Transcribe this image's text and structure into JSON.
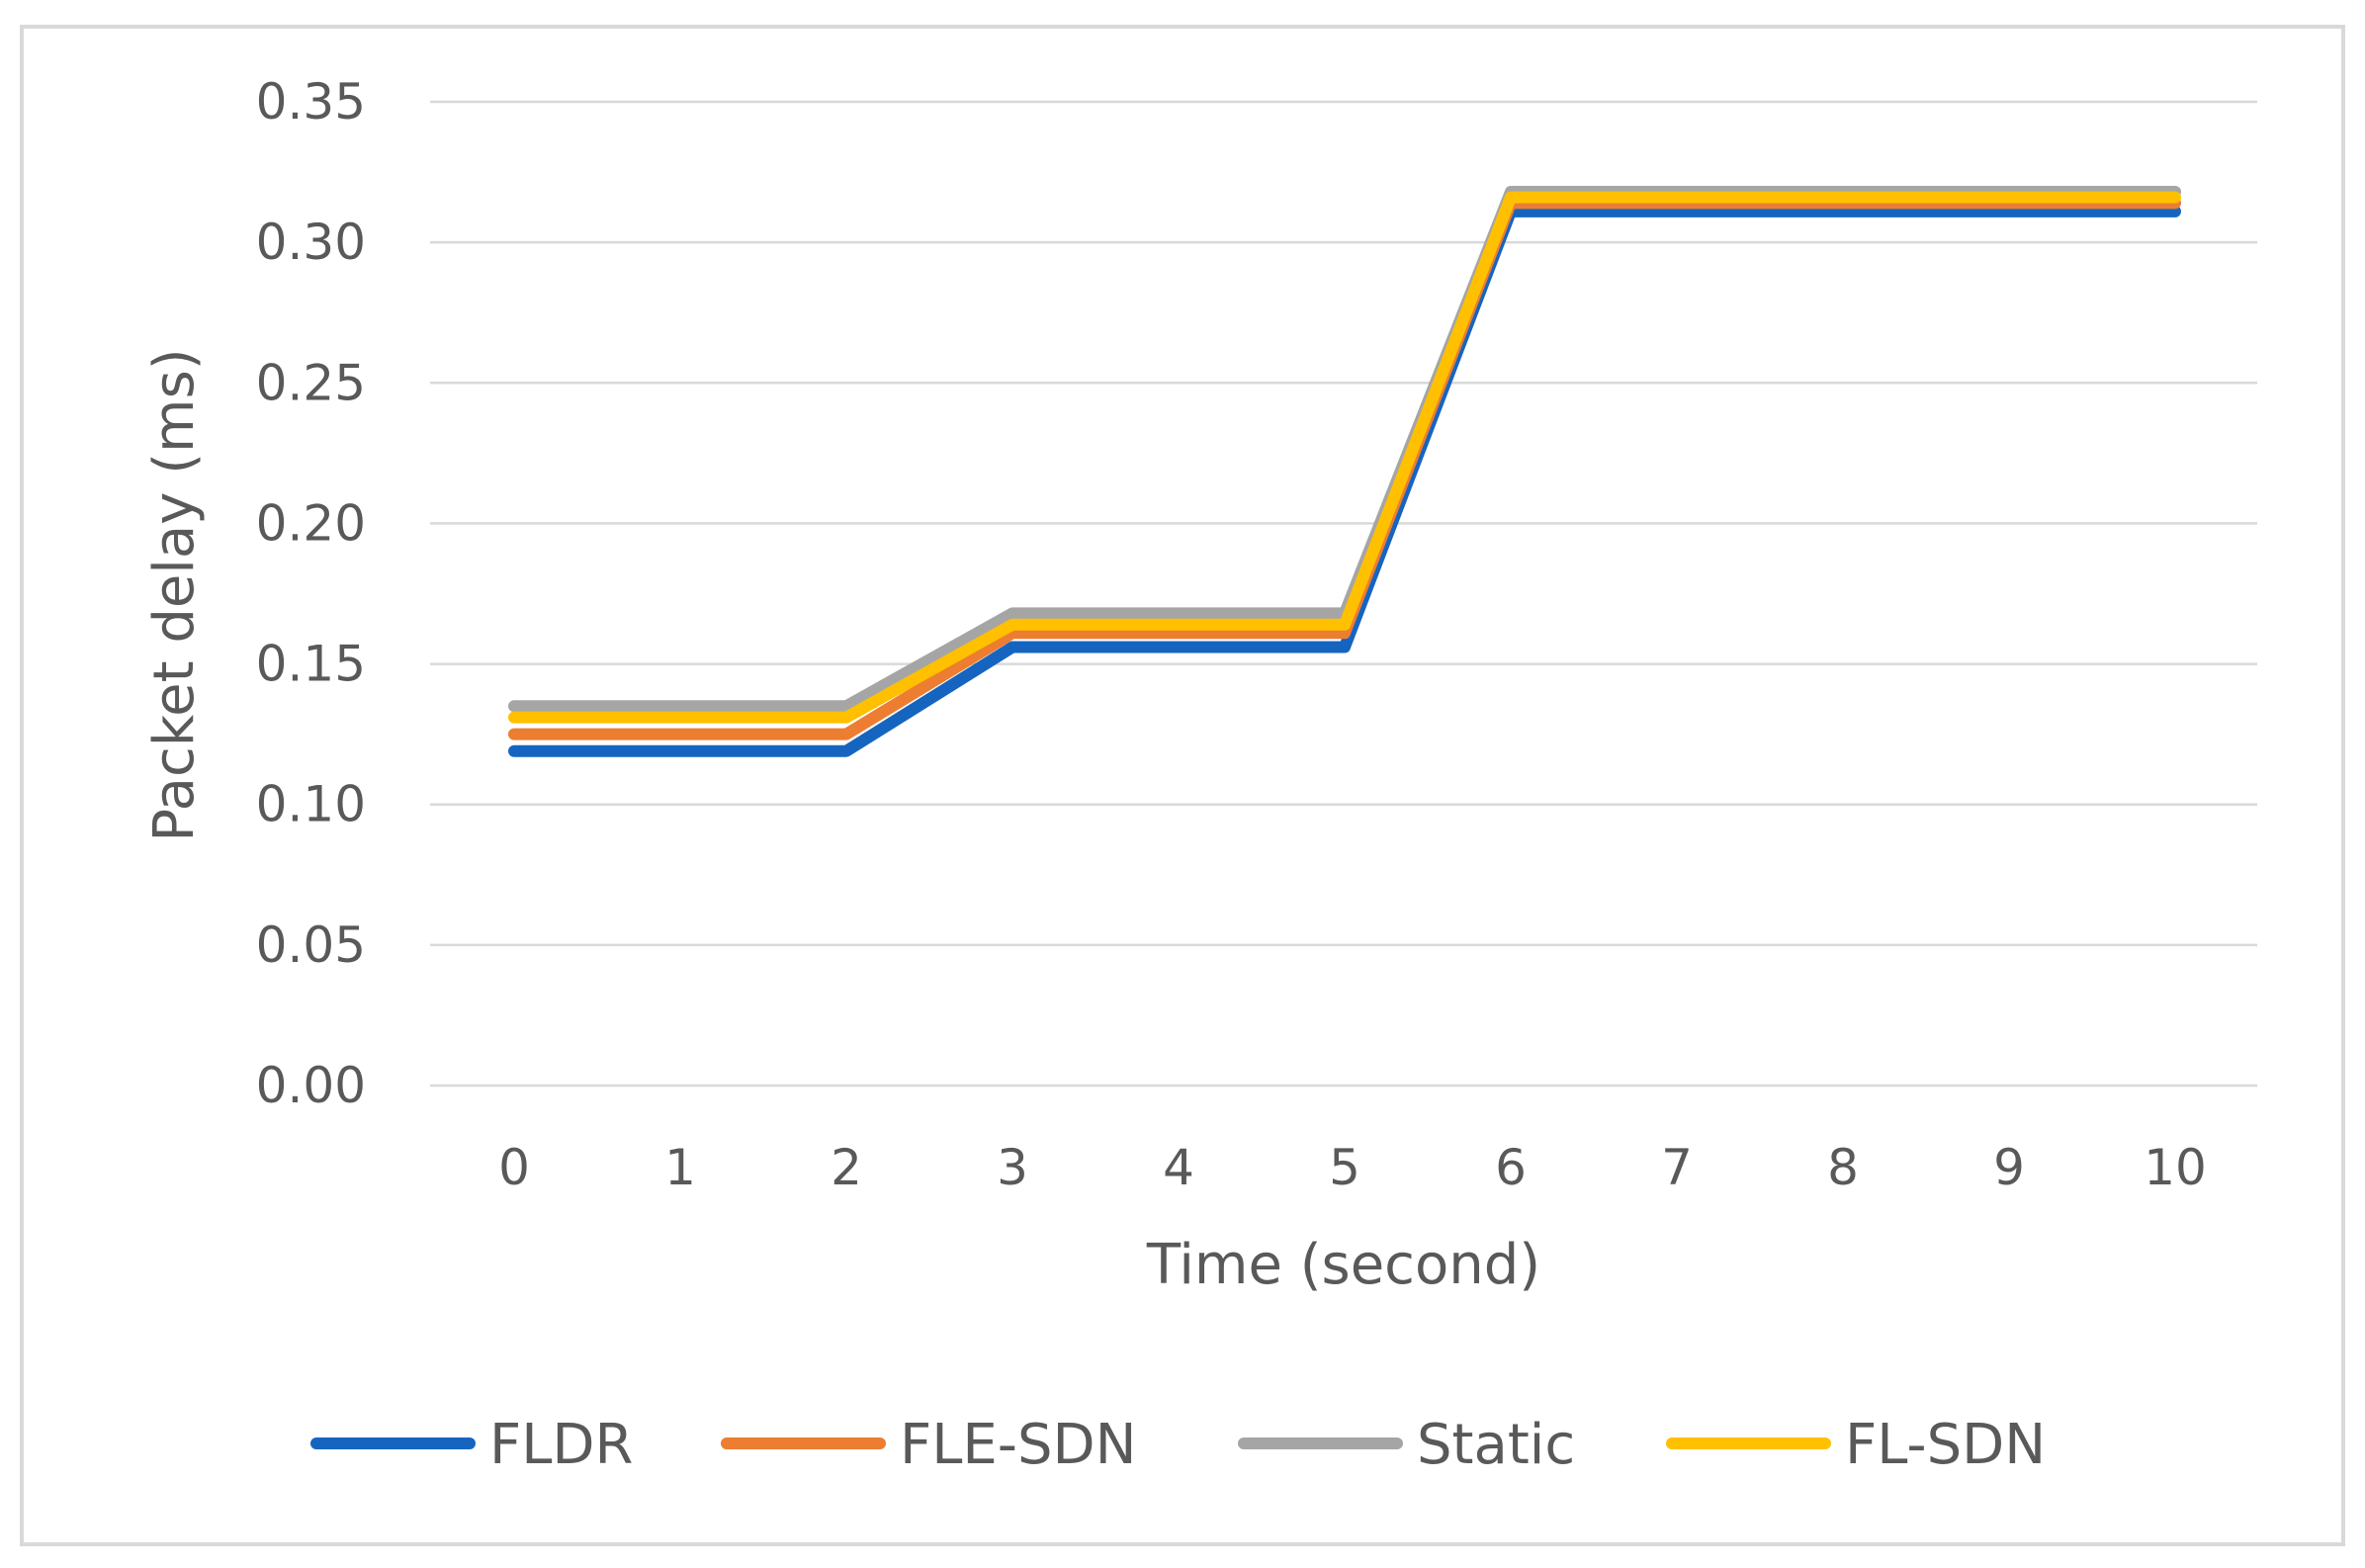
{
  "chart_data": {
    "type": "line",
    "title": "",
    "xlabel": "Time (second)",
    "ylabel": "Packet delay (ms)",
    "categories": [
      "0",
      "1",
      "2",
      "3",
      "4",
      "5",
      "6",
      "7",
      "8",
      "9",
      "10"
    ],
    "x": [
      0,
      1,
      2,
      3,
      4,
      5,
      6,
      7,
      8,
      9,
      10
    ],
    "ylim": [
      0,
      0.35
    ],
    "yticks": [
      "0.00",
      "0.05",
      "0.10",
      "0.15",
      "0.20",
      "0.25",
      "0.30",
      "0.35"
    ],
    "ytick_values": [
      0,
      0.05,
      0.1,
      0.15,
      0.2,
      0.25,
      0.3,
      0.35
    ],
    "grid": true,
    "legend_position": "bottom",
    "series": [
      {
        "name": "FLDR",
        "color": "#1565C0",
        "values": [
          0.119,
          0.119,
          0.119,
          0.156,
          0.156,
          0.156,
          0.311,
          0.311,
          0.311,
          0.311,
          0.311
        ]
      },
      {
        "name": "FLE-SDN",
        "color": "#ED7D31",
        "values": [
          0.125,
          0.125,
          0.125,
          0.161,
          0.161,
          0.161,
          0.314,
          0.314,
          0.314,
          0.314,
          0.314
        ]
      },
      {
        "name": "Static",
        "color": "#A5A5A5",
        "values": [
          0.135,
          0.135,
          0.135,
          0.168,
          0.168,
          0.168,
          0.318,
          0.318,
          0.318,
          0.318,
          0.318
        ]
      },
      {
        "name": "FL-SDN",
        "color": "#FFC000",
        "values": [
          0.131,
          0.131,
          0.131,
          0.164,
          0.164,
          0.164,
          0.316,
          0.316,
          0.316,
          0.316,
          0.316
        ]
      }
    ]
  }
}
